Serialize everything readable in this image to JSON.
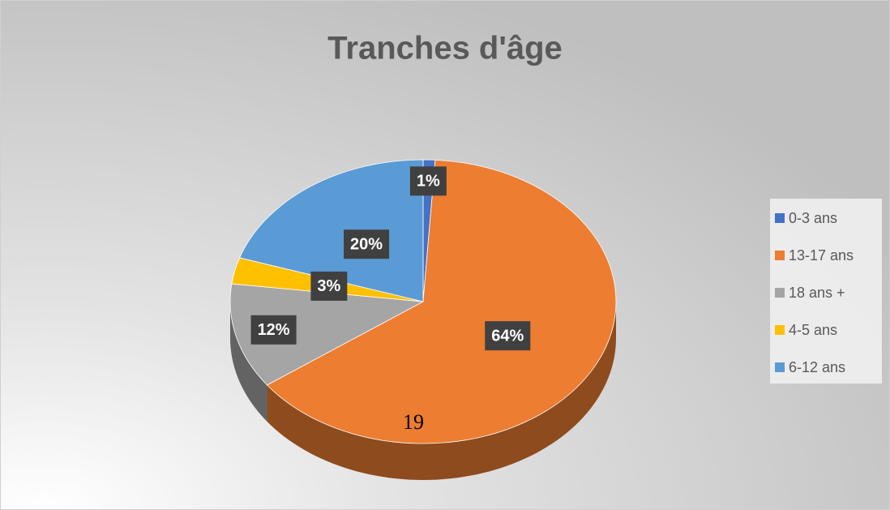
{
  "chart_data": {
    "type": "pie",
    "title": "Tranches d'âge",
    "categories": [
      "0-3 ans",
      "13-17 ans",
      "18 ans +",
      "4-5 ans",
      "6-12 ans"
    ],
    "values": [
      1,
      64,
      12,
      3,
      20
    ],
    "value_labels": [
      "1%",
      "64%",
      "12%",
      "3%",
      "20%"
    ],
    "colors": [
      "#4472c4",
      "#ed7d31",
      "#a5a5a5",
      "#ffc000",
      "#5b9bd5"
    ],
    "legend": "right",
    "annotation": "19"
  }
}
